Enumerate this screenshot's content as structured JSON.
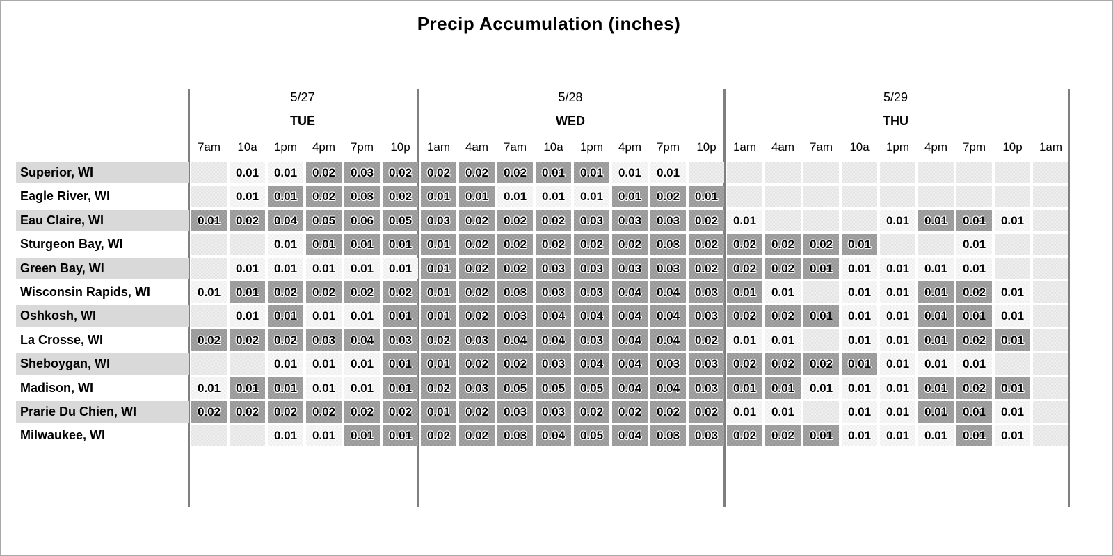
{
  "title": "Precip Accumulation (inches)",
  "chart_data": {
    "type": "heatmap",
    "title": "Precip Accumulation (inches)",
    "unit": "inches",
    "legend_position": "none",
    "grid": "cells-with-gaps",
    "x_groups": [
      {
        "date": "5/27",
        "day": "TUE",
        "num_cols": 6
      },
      {
        "date": "5/28",
        "day": "WED",
        "num_cols": 8
      },
      {
        "date": "5/29",
        "day": "THU",
        "num_cols": 9
      }
    ],
    "x_ticks": [
      "7am",
      "10a",
      "1pm",
      "4pm",
      "7pm",
      "10p",
      "1am",
      "4am",
      "7am",
      "10a",
      "1pm",
      "4pm",
      "7pm",
      "10p",
      "1am",
      "4am",
      "7am",
      "10a",
      "1pm",
      "4pm",
      "7pm",
      "10p",
      "1am"
    ],
    "y_categories": [
      "Superior, WI",
      "Eagle River, WI",
      "Eau Claire, WI",
      "Sturgeon Bay, WI",
      "Green Bay, WI",
      "Wisconsin Rapids, WI",
      "Oshkosh, WI",
      "La Crosse, WI",
      "Sheboygan, WI",
      "Madison, WI",
      "Prarie Du Chien, WI",
      "Milwaukee, WI"
    ],
    "series": [
      {
        "location": "Superior, WI",
        "values": [
          "",
          "0.01",
          "0.01",
          "0.02",
          "0.03",
          "0.02",
          "0.02",
          "0.02",
          "0.02",
          "0.01",
          "0.01",
          "0.01",
          "0.01",
          "",
          "",
          "",
          "",
          "",
          "",
          "",
          "",
          "",
          ""
        ],
        "shades": [
          "",
          "l",
          "l",
          "d",
          "d",
          "d",
          "d",
          "d",
          "d",
          "d",
          "d",
          "l",
          "l",
          "",
          "",
          "",
          "",
          "",
          "",
          "",
          "",
          "",
          ""
        ]
      },
      {
        "location": "Eagle River, WI",
        "values": [
          "",
          "0.01",
          "0.01",
          "0.02",
          "0.03",
          "0.02",
          "0.01",
          "0.01",
          "0.01",
          "0.01",
          "0.01",
          "0.01",
          "0.02",
          "0.01",
          "",
          "",
          "",
          "",
          "",
          "",
          "",
          "",
          ""
        ],
        "shades": [
          "",
          "l",
          "d",
          "d",
          "d",
          "d",
          "d",
          "d",
          "l",
          "l",
          "l",
          "d",
          "d",
          "d",
          "",
          "",
          "",
          "",
          "",
          "",
          "",
          "",
          ""
        ]
      },
      {
        "location": "Eau Claire, WI",
        "values": [
          "0.01",
          "0.02",
          "0.04",
          "0.05",
          "0.06",
          "0.05",
          "0.03",
          "0.02",
          "0.02",
          "0.02",
          "0.03",
          "0.03",
          "0.03",
          "0.02",
          "0.01",
          "",
          "",
          "",
          "0.01",
          "0.01",
          "0.01",
          "0.01",
          ""
        ],
        "shades": [
          "d",
          "d",
          "d",
          "d",
          "d",
          "d",
          "d",
          "d",
          "d",
          "d",
          "d",
          "d",
          "d",
          "d",
          "l",
          "",
          "",
          "",
          "l",
          "d",
          "d",
          "l",
          ""
        ]
      },
      {
        "location": "Sturgeon Bay, WI",
        "values": [
          "",
          "",
          "0.01",
          "0.01",
          "0.01",
          "0.01",
          "0.01",
          "0.02",
          "0.02",
          "0.02",
          "0.02",
          "0.02",
          "0.03",
          "0.02",
          "0.02",
          "0.02",
          "0.02",
          "0.01",
          "",
          "",
          "0.01",
          "",
          ""
        ],
        "shades": [
          "",
          "",
          "l",
          "d",
          "d",
          "d",
          "d",
          "d",
          "d",
          "d",
          "d",
          "d",
          "d",
          "d",
          "d",
          "d",
          "d",
          "d",
          "",
          "",
          "l",
          "",
          ""
        ]
      },
      {
        "location": "Green Bay, WI",
        "values": [
          "",
          "0.01",
          "0.01",
          "0.01",
          "0.01",
          "0.01",
          "0.01",
          "0.02",
          "0.02",
          "0.03",
          "0.03",
          "0.03",
          "0.03",
          "0.02",
          "0.02",
          "0.02",
          "0.01",
          "0.01",
          "0.01",
          "0.01",
          "0.01",
          "",
          ""
        ],
        "shades": [
          "",
          "l",
          "l",
          "l",
          "l",
          "l",
          "d",
          "d",
          "d",
          "d",
          "d",
          "d",
          "d",
          "d",
          "d",
          "d",
          "d",
          "l",
          "l",
          "l",
          "l",
          "",
          ""
        ]
      },
      {
        "location": "Wisconsin Rapids, WI",
        "values": [
          "0.01",
          "0.01",
          "0.02",
          "0.02",
          "0.02",
          "0.02",
          "0.01",
          "0.02",
          "0.03",
          "0.03",
          "0.03",
          "0.04",
          "0.04",
          "0.03",
          "0.01",
          "0.01",
          "",
          "0.01",
          "0.01",
          "0.01",
          "0.02",
          "0.01",
          ""
        ],
        "shades": [
          "l",
          "d",
          "d",
          "d",
          "d",
          "d",
          "d",
          "d",
          "d",
          "d",
          "d",
          "d",
          "d",
          "d",
          "d",
          "l",
          "",
          "l",
          "l",
          "d",
          "d",
          "l",
          ""
        ]
      },
      {
        "location": "Oshkosh, WI",
        "values": [
          "",
          "0.01",
          "0.01",
          "0.01",
          "0.01",
          "0.01",
          "0.01",
          "0.02",
          "0.03",
          "0.04",
          "0.04",
          "0.04",
          "0.04",
          "0.03",
          "0.02",
          "0.02",
          "0.01",
          "0.01",
          "0.01",
          "0.01",
          "0.01",
          "0.01",
          ""
        ],
        "shades": [
          "",
          "l",
          "d",
          "l",
          "l",
          "d",
          "d",
          "d",
          "d",
          "d",
          "d",
          "d",
          "d",
          "d",
          "d",
          "d",
          "d",
          "l",
          "l",
          "d",
          "d",
          "l",
          ""
        ]
      },
      {
        "location": "La Crosse, WI",
        "values": [
          "0.02",
          "0.02",
          "0.02",
          "0.03",
          "0.04",
          "0.03",
          "0.02",
          "0.03",
          "0.04",
          "0.04",
          "0.03",
          "0.04",
          "0.04",
          "0.02",
          "0.01",
          "0.01",
          "",
          "0.01",
          "0.01",
          "0.01",
          "0.02",
          "0.01",
          ""
        ],
        "shades": [
          "d",
          "d",
          "d",
          "d",
          "d",
          "d",
          "d",
          "d",
          "d",
          "d",
          "d",
          "d",
          "d",
          "d",
          "l",
          "l",
          "",
          "l",
          "l",
          "d",
          "d",
          "d",
          ""
        ]
      },
      {
        "location": "Sheboygan, WI",
        "values": [
          "",
          "",
          "0.01",
          "0.01",
          "0.01",
          "0.01",
          "0.01",
          "0.02",
          "0.02",
          "0.03",
          "0.04",
          "0.04",
          "0.03",
          "0.03",
          "0.02",
          "0.02",
          "0.02",
          "0.01",
          "0.01",
          "0.01",
          "0.01",
          "",
          ""
        ],
        "shades": [
          "",
          "",
          "l",
          "l",
          "l",
          "d",
          "d",
          "d",
          "d",
          "d",
          "d",
          "d",
          "d",
          "d",
          "d",
          "d",
          "d",
          "d",
          "l",
          "l",
          "l",
          "",
          ""
        ]
      },
      {
        "location": "Madison, WI",
        "values": [
          "0.01",
          "0.01",
          "0.01",
          "0.01",
          "0.01",
          "0.01",
          "0.02",
          "0.03",
          "0.05",
          "0.05",
          "0.05",
          "0.04",
          "0.04",
          "0.03",
          "0.01",
          "0.01",
          "0.01",
          "0.01",
          "0.01",
          "0.01",
          "0.02",
          "0.01",
          ""
        ],
        "shades": [
          "l",
          "d",
          "d",
          "l",
          "l",
          "d",
          "d",
          "d",
          "d",
          "d",
          "d",
          "d",
          "d",
          "d",
          "d",
          "d",
          "l",
          "l",
          "l",
          "d",
          "d",
          "d",
          ""
        ]
      },
      {
        "location": "Prarie Du Chien, WI",
        "values": [
          "0.02",
          "0.02",
          "0.02",
          "0.02",
          "0.02",
          "0.02",
          "0.01",
          "0.02",
          "0.03",
          "0.03",
          "0.02",
          "0.02",
          "0.02",
          "0.02",
          "0.01",
          "0.01",
          "",
          "0.01",
          "0.01",
          "0.01",
          "0.01",
          "0.01",
          ""
        ],
        "shades": [
          "d",
          "d",
          "d",
          "d",
          "d",
          "d",
          "d",
          "d",
          "d",
          "d",
          "d",
          "d",
          "d",
          "d",
          "l",
          "l",
          "",
          "l",
          "l",
          "d",
          "d",
          "l",
          ""
        ]
      },
      {
        "location": "Milwaukee, WI",
        "values": [
          "",
          "",
          "0.01",
          "0.01",
          "0.01",
          "0.01",
          "0.02",
          "0.02",
          "0.03",
          "0.04",
          "0.05",
          "0.04",
          "0.03",
          "0.03",
          "0.02",
          "0.02",
          "0.01",
          "0.01",
          "0.01",
          "0.01",
          "0.01",
          "0.01",
          ""
        ],
        "shades": [
          "",
          "",
          "l",
          "l",
          "d",
          "d",
          "d",
          "d",
          "d",
          "d",
          "d",
          "d",
          "d",
          "d",
          "d",
          "d",
          "d",
          "l",
          "l",
          "l",
          "d",
          "l",
          ""
        ]
      }
    ],
    "colors": {
      "cell_empty": "#e9e9e9",
      "cell_light": "#f3f3f3",
      "cell_dark": "#9d9d9d",
      "row_stripe": "#d9d9d9",
      "day_divider": "#7f7f7f",
      "text": "#000000"
    }
  }
}
